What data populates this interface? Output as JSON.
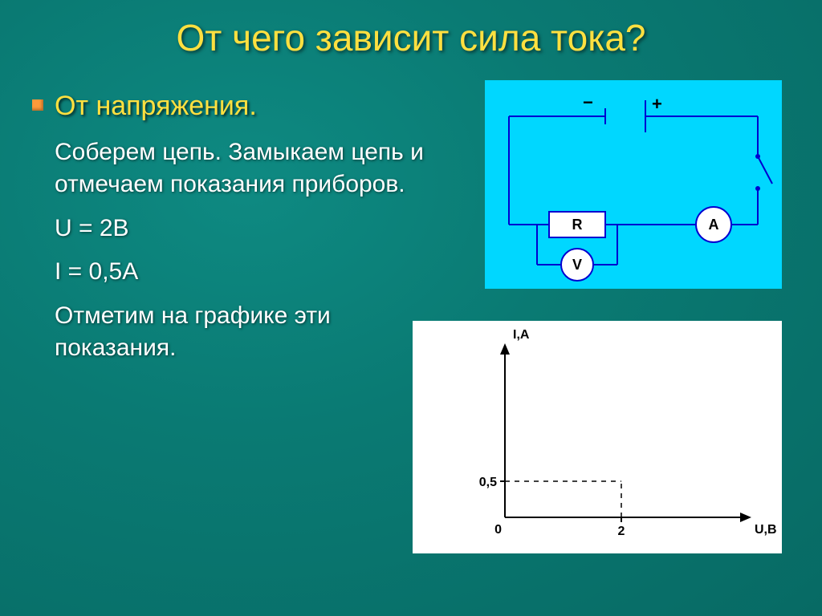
{
  "title": "От чего зависит сила тока?",
  "subtitle": "От напряжения.",
  "body_lines": [
    "Соберем цепь. Замыкаем цепь и отмечаем показания приборов.",
    "U = 2В",
    "I = 0,5А",
    "Отметим на графике эти показания."
  ],
  "circuit": {
    "background_color": "#00d7ff",
    "wire_color": "#0000d0",
    "wire_width": 2,
    "resistor_label": "R",
    "ammeter_label": "A",
    "voltmeter_label": "V",
    "minus": "−",
    "plus": "+",
    "label_color": "#000000",
    "component_fill": "#ffffff"
  },
  "graph": {
    "background_color": "#ffffff",
    "axis_color": "#000000",
    "dash_color": "#000000",
    "y_label": "I,A",
    "x_label": "U,B",
    "origin_label": "0",
    "y_tick_label": "0,5",
    "y_tick_value": 0.5,
    "x_tick_label": "2",
    "x_tick_value": 2,
    "label_fontsize": 16,
    "axis_width": 2,
    "font_family": "Arial"
  },
  "colors": {
    "title": "#ffe040",
    "subtitle": "#ffe040",
    "body_text": "#ffffff",
    "bullet": "#ff9a3a",
    "bg_inner": "#0e8a82",
    "bg_outer": "#076a64"
  },
  "typography": {
    "title_fontsize": 46,
    "subtitle_fontsize": 34,
    "body_fontsize": 30
  }
}
